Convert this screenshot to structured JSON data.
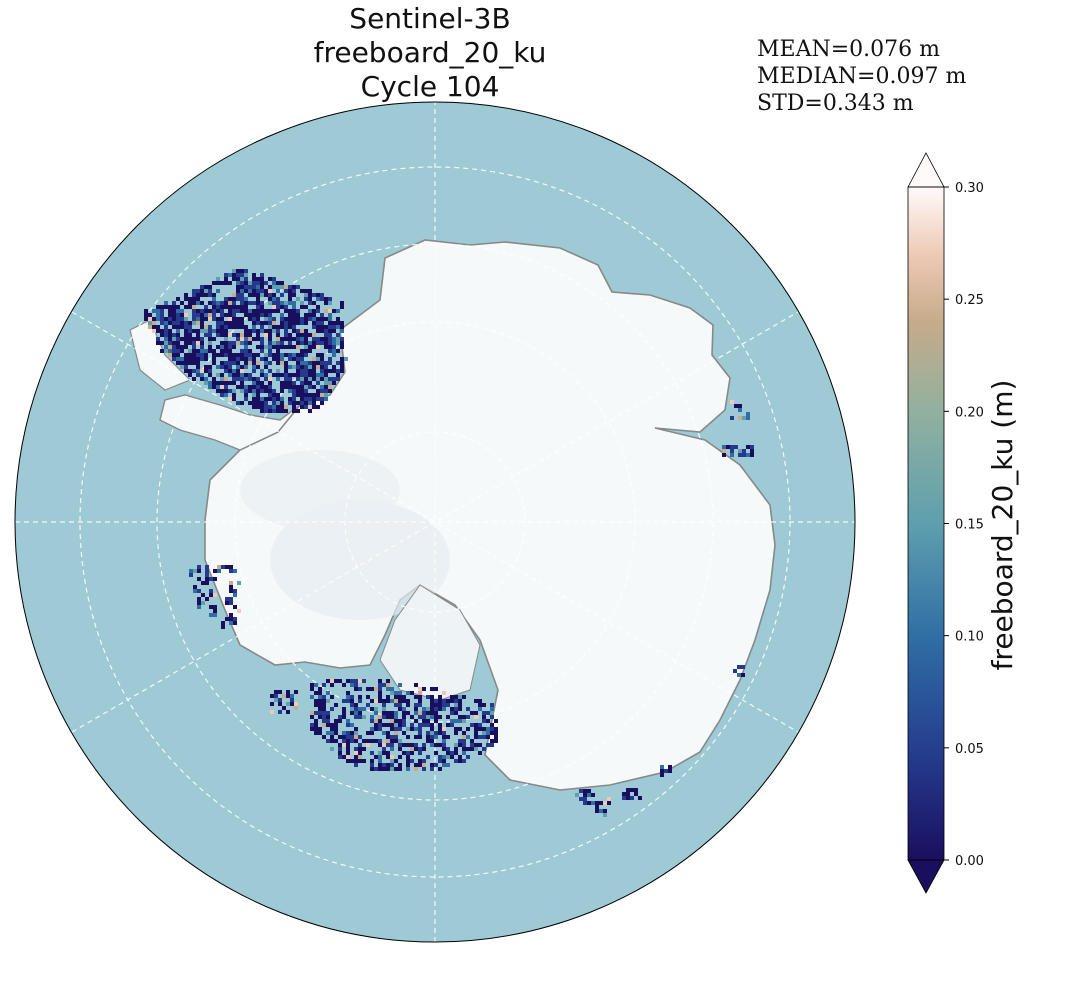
{
  "title": {
    "line1": "Sentinel-3B freeboard_20_ku",
    "line2": "Cycle 104"
  },
  "stats": {
    "mean": "MEAN=0.076 m",
    "median": "MEDIAN=0.097 m",
    "std": "STD=0.343 m"
  },
  "colorbar": {
    "label": "freeboard_20_ku (m)",
    "min": 0.0,
    "max": 0.3,
    "extend": "both",
    "colormap": [
      "#1a0f5e",
      "#253a8c",
      "#2f6ea4",
      "#5f9fae",
      "#8fb0a0",
      "#c7ab8a",
      "#eecab6",
      "#fffafa"
    ],
    "ticks": [
      "0.00",
      "0.05",
      "0.10",
      "0.15",
      "0.20",
      "0.25",
      "0.30"
    ]
  },
  "map": {
    "projection": "South Polar Stereographic",
    "ocean_color": "#9dcad4",
    "land_color": "#f5f8f9",
    "coastline_color": "#888888",
    "graticule": "dashed white"
  }
}
